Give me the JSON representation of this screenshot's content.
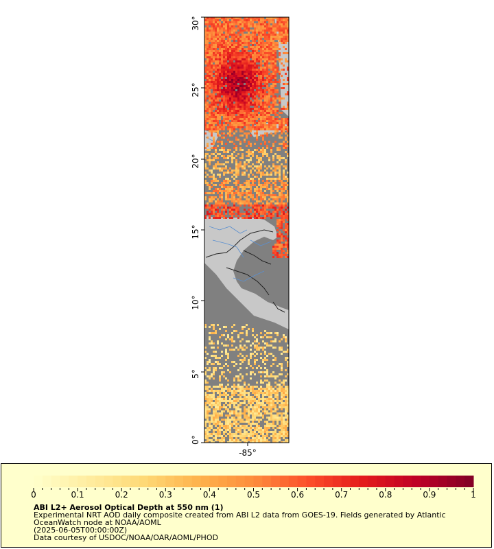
{
  "map": {
    "lat_labels": [
      "30°",
      "25°",
      "20°",
      "15°",
      "10°",
      "5°",
      "0°"
    ],
    "lon_labels": [
      "-85°"
    ],
    "lat_range": [
      0,
      30
    ],
    "colors": {
      "background": "#ffffff",
      "no_data": "#808080",
      "land": "#c8c8c8",
      "border_lines": "#222222",
      "rivers": "#5a8fd0",
      "frame": "#000000"
    }
  },
  "colorbar": {
    "ticks": [
      "0",
      "0.1",
      "0.2",
      "0.3",
      "0.4",
      "0.5",
      "0.6",
      "0.7",
      "0.8",
      "0.9",
      "1"
    ],
    "range": [
      0,
      1
    ],
    "colors": [
      "#ffffcc",
      "#ffeda0",
      "#fed976",
      "#feb24c",
      "#fd8d3c",
      "#fc4e2a",
      "#e31a1c",
      "#bd0026",
      "#800026"
    ]
  },
  "legend": {
    "title": "ABI L2+ Aerosol Optical Depth at 550 nm (1)",
    "line1": "Experimental NRT AOD daily composite created from ABI L2 data from GOES-19. Fields generated by Atlantic",
    "line2": "OceanWatch node at NOAA/AOML",
    "line3": "(2025-06-05T00:00:00Z)",
    "line4": "Data courtesy of USDOC/NOAA/OAR/AOML/PHOD"
  }
}
